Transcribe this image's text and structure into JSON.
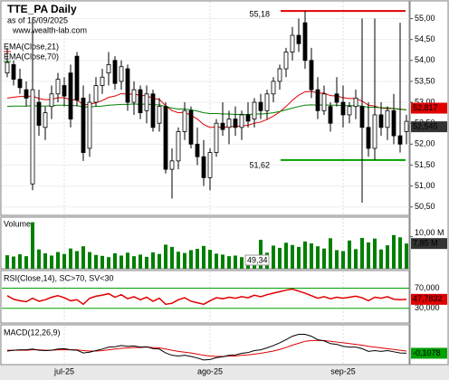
{
  "chart_data": {
    "type": "candlestick",
    "title": "TTE_PA Daily",
    "subtitle": "as of 15/09/2025",
    "source": "www.wealth-lab.com",
    "categories": [
      null,
      null,
      null,
      null,
      null,
      null,
      null,
      null,
      null,
      "jul-25",
      null,
      null,
      null,
      null,
      null,
      null,
      null,
      null,
      null,
      null,
      null,
      null,
      null,
      null,
      null,
      null,
      null,
      null,
      null,
      null,
      null,
      null,
      "ago-25",
      null,
      null,
      null,
      null,
      null,
      null,
      null,
      null,
      null,
      null,
      null,
      null,
      null,
      null,
      null,
      null,
      null,
      null,
      null,
      null,
      "sep-25",
      null,
      null,
      null,
      null,
      null,
      null,
      null,
      null,
      null,
      null
    ],
    "open": [
      53.7,
      53.9,
      53.55,
      53.3,
      51.05,
      53.0,
      52.4,
      52.9,
      53.2,
      53.4,
      53.7,
      54.1,
      53.1,
      51.9,
      53.0,
      53.4,
      53.7,
      54.0,
      53.5,
      53.8,
      53.0,
      53.3,
      52.8,
      53.2,
      52.5,
      52.9,
      51.4,
      51.6,
      52.3,
      52.8,
      52.0,
      51.7,
      51.2,
      51.8,
      52.5,
      52.4,
      52.6,
      52.4,
      52.7,
      52.6,
      53.0,
      52.8,
      53.2,
      53.5,
      53.8,
      54.2,
      54.6,
      54.9,
      54.0,
      53.3,
      52.8,
      52.9,
      53.2,
      53.0,
      52.7,
      52.9,
      52.9,
      52.4,
      51.9,
      52.7,
      52.4,
      52.8,
      52.2,
      52.3
    ],
    "high": [
      54.3,
      54.0,
      53.8,
      53.5,
      55.0,
      53.3,
      52.9,
      53.4,
      53.7,
      53.6,
      53.9,
      54.2,
      53.4,
      53.2,
      53.6,
      53.8,
      54.2,
      54.1,
      54.0,
      53.9,
      53.5,
      53.4,
      53.4,
      53.3,
      53.1,
      53.0,
      51.9,
      52.4,
      53.0,
      52.9,
      52.4,
      52.1,
      51.9,
      52.6,
      53.0,
      52.8,
      52.9,
      52.8,
      53.0,
      53.1,
      53.2,
      53.3,
      53.6,
      53.9,
      54.3,
      54.8,
      55.0,
      55.18,
      54.3,
      53.6,
      53.4,
      53.0,
      53.6,
      53.4,
      53.0,
      53.3,
      55.0,
      53.0,
      55.0,
      53.0,
      52.9,
      53.2,
      54.9,
      52.7
    ],
    "low": [
      53.6,
      53.4,
      53.2,
      52.9,
      50.9,
      52.2,
      52.1,
      52.6,
      53.0,
      52.9,
      52.4,
      52.9,
      51.6,
      51.7,
      52.9,
      53.2,
      53.4,
      53.3,
      53.3,
      52.8,
      52.7,
      52.6,
      52.5,
      52.3,
      52.3,
      51.3,
      50.7,
      51.4,
      52.1,
      51.9,
      51.5,
      51.0,
      50.9,
      51.7,
      52.2,
      52.0,
      52.2,
      52.1,
      52.4,
      52.4,
      52.6,
      52.6,
      53.0,
      53.3,
      53.6,
      54.0,
      54.2,
      53.8,
      53.1,
      52.6,
      52.7,
      52.3,
      52.9,
      52.4,
      52.5,
      52.6,
      50.6,
      51.7,
      51.62,
      52.2,
      52.1,
      52.0,
      51.8,
      52.0
    ],
    "close": [
      53.95,
      53.55,
      53.35,
      53.1,
      53.3,
      52.45,
      52.75,
      53.2,
      53.55,
      53.15,
      52.6,
      53.05,
      51.8,
      53.0,
      53.4,
      53.6,
      53.9,
      53.45,
      53.85,
      53.0,
      53.3,
      52.75,
      53.2,
      52.4,
      52.9,
      51.4,
      51.6,
      52.3,
      52.8,
      52.0,
      51.7,
      51.2,
      51.8,
      52.5,
      52.35,
      52.6,
      52.4,
      52.7,
      52.55,
      53.0,
      52.8,
      53.2,
      53.5,
      53.8,
      54.2,
      54.6,
      54.4,
      54.0,
      53.3,
      52.8,
      53.2,
      52.5,
      53.0,
      52.7,
      52.9,
      53.1,
      52.4,
      51.9,
      52.7,
      52.4,
      52.8,
      52.2,
      52.0,
      52.545
    ],
    "close_label": "52,545",
    "ylim": [
      50.3,
      55.4
    ],
    "yticks": [
      {
        "value": 55,
        "label": "55,00"
      },
      {
        "value": 54.5,
        "label": "54,50"
      },
      {
        "value": 54,
        "label": "54,00"
      },
      {
        "value": 53.5,
        "label": "53,50"
      },
      {
        "value": 53,
        "label": "53,00"
      },
      {
        "value": 52.5,
        "label": "52,50"
      },
      {
        "value": 52,
        "label": "52,00"
      },
      {
        "value": 51.5,
        "label": "51,50"
      },
      {
        "value": 51,
        "label": "51,00"
      },
      {
        "value": 50.5,
        "label": "50,50"
      }
    ],
    "hlines": [
      {
        "value": 55.18,
        "label": "55,18",
        "color": "#e00000"
      },
      {
        "value": 51.62,
        "label": "51,62",
        "color": "#00a000"
      }
    ],
    "series": [
      {
        "name": "EMA(Close,21)",
        "color": "#e00000",
        "last_label": "52,817",
        "values": [
          53.1,
          53.12,
          53.14,
          53.14,
          53.15,
          53.09,
          53.06,
          53.07,
          53.11,
          53.11,
          53.06,
          53.06,
          52.94,
          52.95,
          52.99,
          53.04,
          53.12,
          53.15,
          53.21,
          53.19,
          53.2,
          53.16,
          53.16,
          53.09,
          53.07,
          52.92,
          52.8,
          52.75,
          52.76,
          52.69,
          52.6,
          52.47,
          52.4,
          52.41,
          52.4,
          52.42,
          52.42,
          52.44,
          52.45,
          52.5,
          52.53,
          52.59,
          52.67,
          52.77,
          52.9,
          53.05,
          53.17,
          53.25,
          53.26,
          53.22,
          53.22,
          53.16,
          53.15,
          53.11,
          53.09,
          53.09,
          53.03,
          52.93,
          52.91,
          52.86,
          52.85,
          52.85,
          52.84,
          52.817
        ]
      },
      {
        "name": "EMA(Close,70)",
        "color": "#008000",
        "values": [
          52.9,
          52.91,
          52.91,
          52.91,
          52.92,
          52.91,
          52.91,
          52.92,
          52.93,
          52.93,
          52.92,
          52.92,
          52.89,
          52.89,
          52.9,
          52.91,
          52.93,
          52.94,
          52.95,
          52.95,
          52.96,
          52.95,
          52.96,
          52.94,
          52.94,
          52.9,
          52.86,
          52.84,
          52.84,
          52.82,
          52.79,
          52.75,
          52.73,
          52.73,
          52.72,
          52.72,
          52.71,
          52.71,
          52.71,
          52.72,
          52.72,
          52.73,
          52.75,
          52.78,
          52.82,
          52.86,
          52.9,
          52.93,
          52.94,
          52.93,
          52.94,
          52.93,
          52.93,
          52.92,
          52.92,
          52.92,
          52.91,
          52.88,
          52.88,
          52.87,
          52.87,
          52.85,
          52.83,
          52.82
        ]
      }
    ],
    "volume": {
      "title": "Volume",
      "color": "#008000",
      "ylim": [
        0,
        15.8
      ],
      "yticks": [
        {
          "value": 10,
          "label": "10,00 M"
        }
      ],
      "last_label": "7,85 M",
      "annotation": "49,34",
      "values": [
        4.2,
        3.8,
        4.5,
        3.9,
        14.5,
        6.0,
        4.8,
        4.1,
        5.2,
        4.6,
        6.3,
        5.5,
        7.0,
        5.2,
        4.3,
        4.0,
        3.6,
        4.8,
        4.1,
        5.0,
        3.9,
        4.4,
        3.7,
        5.1,
        4.6,
        7.5,
        6.8,
        5.3,
        4.9,
        5.8,
        6.2,
        7.1,
        5.9,
        4.7,
        4.4,
        3.9,
        4.1,
        3.6,
        3.8,
        4.3,
        9.0,
        5.0,
        7.2,
        6.5,
        8.1,
        7.4,
        6.8,
        8.5,
        7.9,
        7.0,
        6.3,
        9.5,
        5.8,
        5.5,
        8.8,
        6.1,
        9.6,
        8.2,
        9.4,
        6.0,
        7.3,
        10.5,
        9.8,
        7.85
      ]
    },
    "rsi": {
      "title": "RSI(Close,14), SC>70, SV<30",
      "color": "#e00000",
      "level_color": "#00a000",
      "ylim": [
        1,
        103
      ],
      "yticks": [
        {
          "value": 70,
          "label": "70,000"
        },
        {
          "value": 30,
          "label": "30,000"
        }
      ],
      "last_label": "47,7832",
      "values": [
        55,
        48,
        45,
        43,
        50,
        44,
        47,
        52,
        55,
        51,
        45,
        47,
        38,
        50,
        54,
        56,
        59,
        52,
        57,
        49,
        53,
        47,
        52,
        44,
        50,
        38,
        40,
        47,
        51,
        44,
        41,
        38,
        45,
        51,
        49,
        52,
        50,
        53,
        51,
        56,
        53,
        57,
        60,
        63,
        66,
        68,
        64,
        60,
        55,
        50,
        53,
        49,
        52,
        50,
        52,
        54,
        51,
        45,
        52,
        50,
        53,
        48,
        47,
        47.7832
      ]
    },
    "macd": {
      "title": "MACD(12,26,9)",
      "color": "#000000",
      "signal_color": "#e00000",
      "ylim": [
        -0.4,
        0.6
      ],
      "last_label": "-0,1078",
      "values": [
        -0.05,
        -0.03,
        -0.02,
        -0.02,
        0.0,
        -0.03,
        -0.04,
        -0.03,
        0.0,
        0.01,
        -0.02,
        -0.03,
        -0.1,
        -0.08,
        -0.04,
        0.0,
        0.05,
        0.06,
        0.09,
        0.07,
        0.08,
        0.05,
        0.06,
        0.01,
        0.0,
        -0.1,
        -0.16,
        -0.18,
        -0.16,
        -0.19,
        -0.23,
        -0.28,
        -0.27,
        -0.22,
        -0.2,
        -0.16,
        -0.15,
        -0.11,
        -0.09,
        -0.04,
        -0.02,
        0.03,
        0.09,
        0.16,
        0.24,
        0.33,
        0.38,
        0.38,
        0.33,
        0.24,
        0.21,
        0.14,
        0.12,
        0.07,
        0.05,
        0.05,
        0.01,
        -0.06,
        -0.04,
        -0.06,
        -0.04,
        -0.07,
        -0.1,
        -0.1078
      ],
      "signal": [
        -0.03,
        -0.03,
        -0.03,
        -0.03,
        -0.02,
        -0.02,
        -0.03,
        -0.03,
        -0.02,
        -0.02,
        -0.02,
        -0.02,
        -0.04,
        -0.05,
        -0.05,
        -0.04,
        -0.02,
        0.0,
        0.02,
        0.03,
        0.04,
        0.04,
        0.05,
        0.04,
        0.03,
        0.0,
        -0.03,
        -0.06,
        -0.08,
        -0.1,
        -0.13,
        -0.16,
        -0.18,
        -0.19,
        -0.19,
        -0.18,
        -0.18,
        -0.16,
        -0.15,
        -0.13,
        -0.11,
        -0.08,
        -0.05,
        -0.01,
        0.04,
        0.1,
        0.15,
        0.2,
        0.22,
        0.22,
        0.22,
        0.2,
        0.18,
        0.16,
        0.14,
        0.12,
        0.1,
        0.07,
        0.05,
        0.03,
        0.01,
        -0.01,
        -0.03,
        -0.05
      ]
    }
  }
}
